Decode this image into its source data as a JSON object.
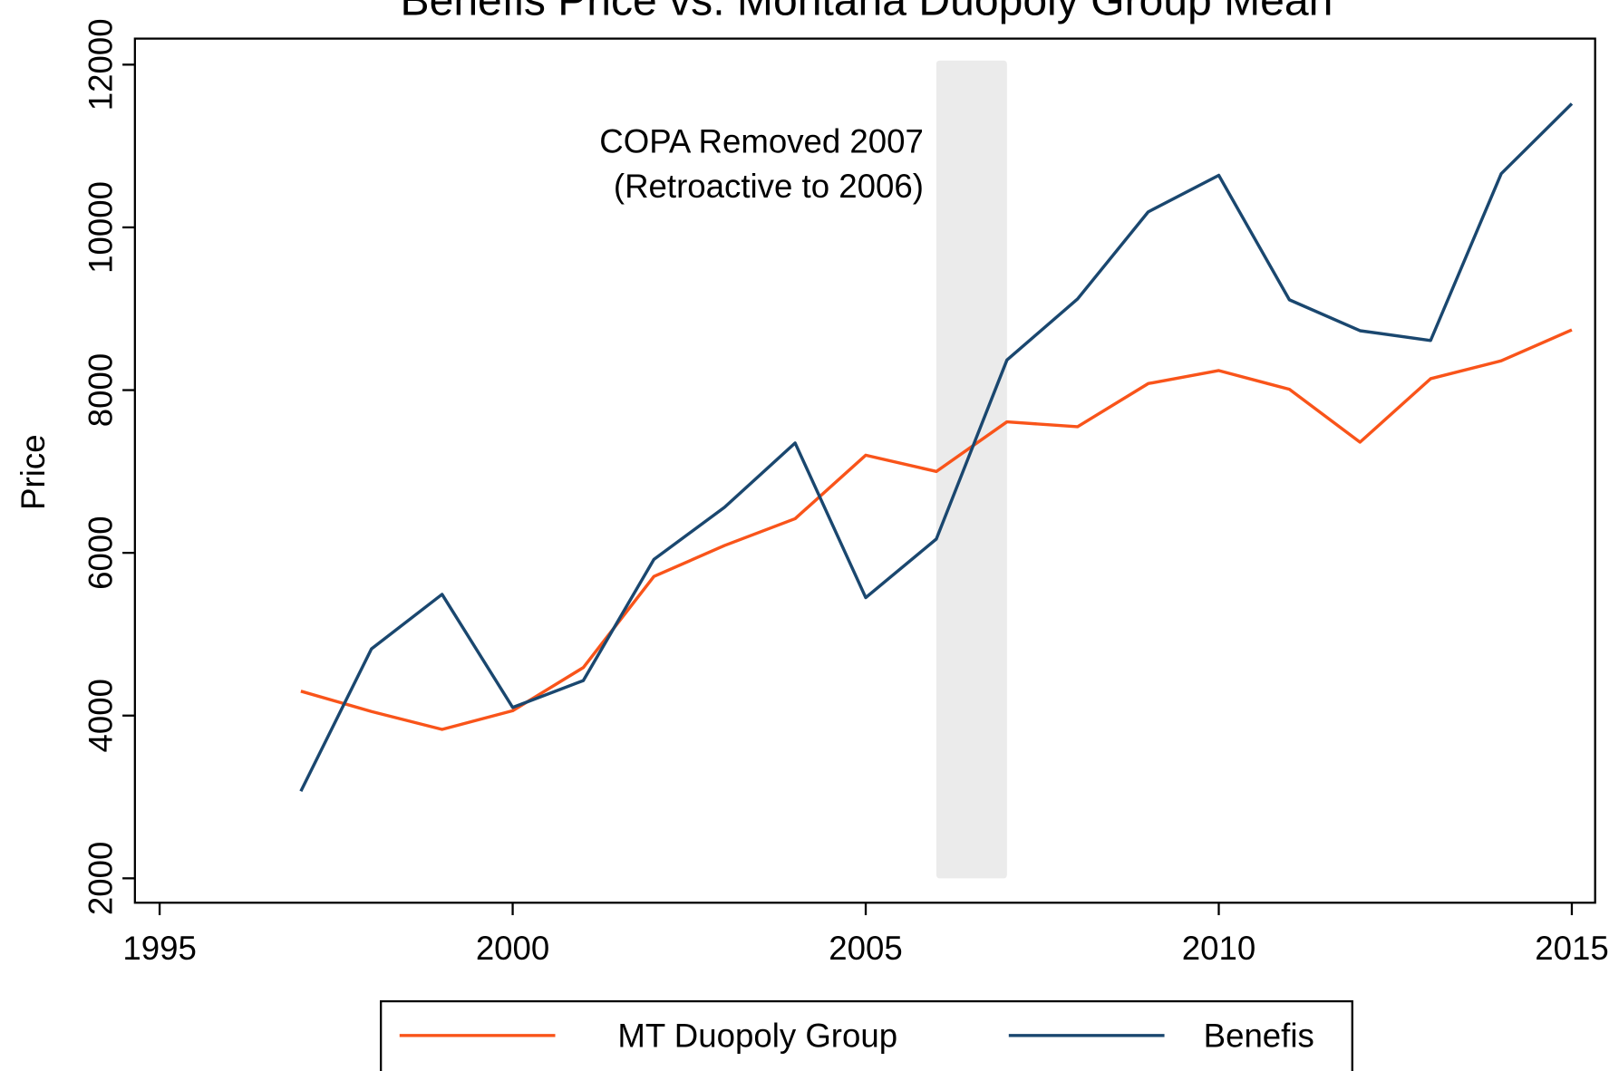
{
  "chart_data": {
    "type": "line",
    "title": "Benefis Price vs. Montana Duopoly Group Mean",
    "y_label": "Price",
    "annotation": [
      "COPA Removed 2007",
      "(Retroactive to 2006)"
    ],
    "x": [
      1997,
      1998,
      1999,
      2000,
      2001,
      2002,
      2003,
      2004,
      2005,
      2006,
      2007,
      2008,
      2009,
      2010,
      2011,
      2012,
      2013,
      2014,
      2015
    ],
    "series": [
      {
        "name": "MT Duopoly Group",
        "color": "#f9541a",
        "values": [
          4300,
          4050,
          3830,
          4060,
          4590,
          5710,
          6090,
          6420,
          7200,
          7000,
          7610,
          7550,
          8080,
          8240,
          8010,
          7360,
          8140,
          8360,
          8740
        ]
      },
      {
        "name": "Benefis",
        "color": "#1a476f",
        "values": [
          3070,
          4820,
          5490,
          4100,
          4430,
          5920,
          6560,
          7350,
          5450,
          6170,
          8370,
          9120,
          10190,
          10640,
          9110,
          8730,
          8610,
          10660,
          11520
        ]
      }
    ],
    "shaded_region": {
      "xlim": [
        2006,
        2007
      ],
      "ylim": [
        2000,
        12050
      ],
      "color": "#ebebeb"
    },
    "xlim": [
      1994.65,
      2015.33
    ],
    "xticks": [
      1995,
      2000,
      2005,
      2010,
      2015
    ],
    "ylim": [
      1700,
      12320
    ],
    "yticks": [
      2000,
      4000,
      6000,
      8000,
      10000,
      12000
    ],
    "grid": false,
    "legend": "bottom"
  }
}
